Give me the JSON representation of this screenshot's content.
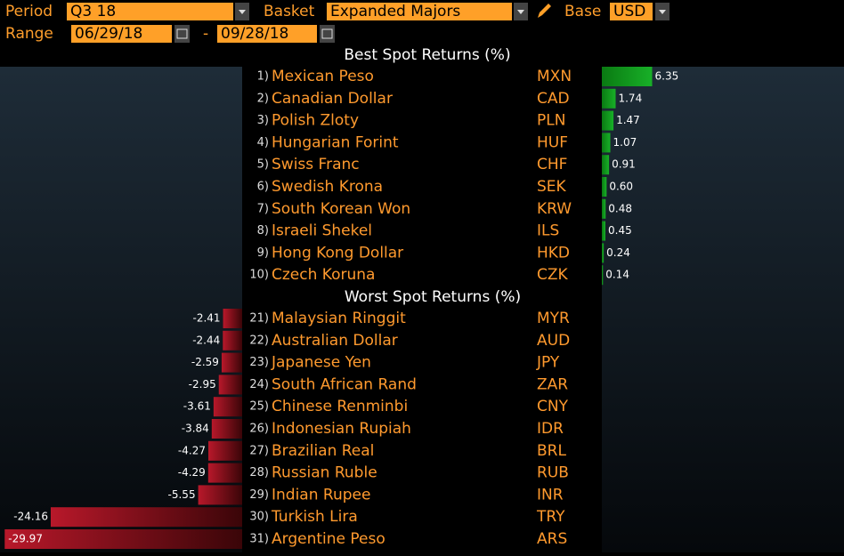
{
  "controls": {
    "period_label": "Period",
    "period": "Q3 18",
    "basket_label": "Basket",
    "basket": "Expanded Majors",
    "base_label": "Base",
    "base": "USD",
    "range_label": "Range",
    "start": "06/29/18",
    "separator": "-",
    "end": "09/28/18"
  },
  "best": {
    "title": "Best Spot Returns (%)",
    "rows": [
      {
        "rank": "1)",
        "name": "Mexican Peso",
        "code": "MXN",
        "value": 6.35
      },
      {
        "rank": "2)",
        "name": "Canadian Dollar",
        "code": "CAD",
        "value": 1.74
      },
      {
        "rank": "3)",
        "name": "Polish Zloty",
        "code": "PLN",
        "value": 1.47
      },
      {
        "rank": "4)",
        "name": "Hungarian Forint",
        "code": "HUF",
        "value": 1.07
      },
      {
        "rank": "5)",
        "name": "Swiss Franc",
        "code": "CHF",
        "value": 0.91
      },
      {
        "rank": "6)",
        "name": "Swedish Krona",
        "code": "SEK",
        "value": 0.6,
        "value_label": "0.60"
      },
      {
        "rank": "7)",
        "name": "South Korean Won",
        "code": "KRW",
        "value": 0.48
      },
      {
        "rank": "8)",
        "name": "Israeli Shekel",
        "code": "ILS",
        "value": 0.45
      },
      {
        "rank": "9)",
        "name": "Hong Kong Dollar",
        "code": "HKD",
        "value": 0.24
      },
      {
        "rank": "10)",
        "name": "Czech Koruna",
        "code": "CZK",
        "value": 0.14
      }
    ]
  },
  "worst": {
    "title": "Worst Spot Returns (%)",
    "rows": [
      {
        "rank": "21)",
        "name": "Malaysian Ringgit",
        "code": "MYR",
        "value": -2.41
      },
      {
        "rank": "22)",
        "name": "Australian Dollar",
        "code": "AUD",
        "value": -2.44
      },
      {
        "rank": "23)",
        "name": "Japanese Yen",
        "code": "JPY",
        "value": -2.59
      },
      {
        "rank": "24)",
        "name": "South African Rand",
        "code": "ZAR",
        "value": -2.95
      },
      {
        "rank": "25)",
        "name": "Chinese Renminbi",
        "code": "CNY",
        "value": -3.61
      },
      {
        "rank": "26)",
        "name": "Indonesian Rupiah",
        "code": "IDR",
        "value": -3.84
      },
      {
        "rank": "27)",
        "name": "Brazilian Real",
        "code": "BRL",
        "value": -4.27
      },
      {
        "rank": "28)",
        "name": "Russian Ruble",
        "code": "RUB",
        "value": -4.29
      },
      {
        "rank": "29)",
        "name": "Indian Rupee",
        "code": "INR",
        "value": -5.55
      },
      {
        "rank": "30)",
        "name": "Turkish Lira",
        "code": "TRY",
        "value": -24.16
      },
      {
        "rank": "31)",
        "name": "Argentine Peso",
        "code": "ARS",
        "value": -29.97
      }
    ]
  }
}
